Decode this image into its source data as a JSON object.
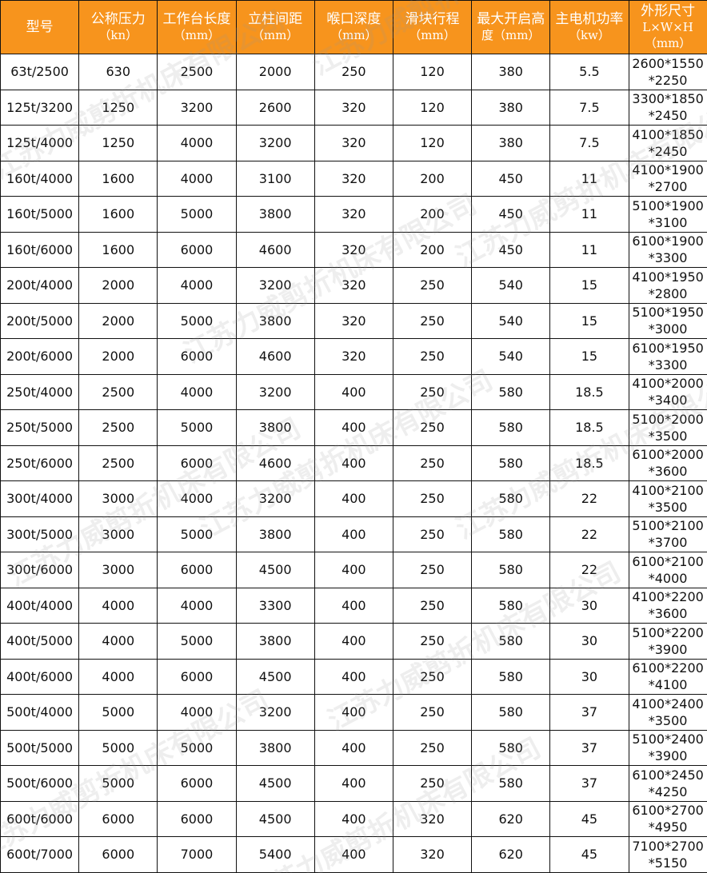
{
  "colors": {
    "header_bg": "#f7941d",
    "header_text": "#ffffff",
    "border": "#111111"
  },
  "watermark": "江苏力威剪折机床有限公司",
  "headers": [
    {
      "label": "型号",
      "unit": ""
    },
    {
      "label": "公称压力",
      "unit": "（kn）"
    },
    {
      "label": "工作台长度",
      "unit": "（mm）"
    },
    {
      "label": "立柱间距",
      "unit": "（mm）"
    },
    {
      "label": "喉口深度",
      "unit": "（mm）"
    },
    {
      "label": "滑块行程",
      "unit": "（mm）"
    },
    {
      "label": "最大开启高",
      "unit": "度（mm）"
    },
    {
      "label": "主电机功率",
      "unit": "（kw）"
    },
    {
      "label": "外形尺寸",
      "unit": "L×W×H（mm）"
    }
  ],
  "rows": [
    [
      "63t/2500",
      "630",
      "2500",
      "2000",
      "250",
      "120",
      "380",
      "5.5",
      "2600*1550",
      "*2250"
    ],
    [
      "125t/3200",
      "1250",
      "3200",
      "2600",
      "320",
      "120",
      "380",
      "7.5",
      "3300*1850",
      "*2450"
    ],
    [
      "125t/4000",
      "1250",
      "4000",
      "3200",
      "320",
      "120",
      "380",
      "7.5",
      "4100*1850",
      "*2450"
    ],
    [
      "160t/4000",
      "1600",
      "4000",
      "3100",
      "320",
      "200",
      "450",
      "11",
      "4100*1900",
      "*2700"
    ],
    [
      "160t/5000",
      "1600",
      "5000",
      "3800",
      "320",
      "200",
      "450",
      "11",
      "5100*1900",
      "*3100"
    ],
    [
      "160t/6000",
      "1600",
      "6000",
      "4600",
      "320",
      "200",
      "450",
      "11",
      "6100*1900",
      "*3300"
    ],
    [
      "200t/4000",
      "2000",
      "4000",
      "3200",
      "320",
      "250",
      "540",
      "15",
      "4100*1950",
      "*2800"
    ],
    [
      "200t/5000",
      "2000",
      "5000",
      "3800",
      "320",
      "250",
      "540",
      "15",
      "5100*1950",
      "*3000"
    ],
    [
      "200t/6000",
      "2000",
      "6000",
      "4600",
      "320",
      "250",
      "540",
      "15",
      "6100*1950",
      "*3300"
    ],
    [
      "250t/4000",
      "2500",
      "4000",
      "3200",
      "400",
      "250",
      "580",
      "18.5",
      "4100*2000",
      "*3400"
    ],
    [
      "250t/5000",
      "2500",
      "5000",
      "3800",
      "400",
      "250",
      "580",
      "18.5",
      "5100*2000",
      "*3500"
    ],
    [
      "250t/6000",
      "2500",
      "6000",
      "4600",
      "400",
      "250",
      "580",
      "18.5",
      "6100*2000",
      "*3600"
    ],
    [
      "300t/4000",
      "3000",
      "4000",
      "3200",
      "400",
      "250",
      "580",
      "22",
      "4100*2100",
      "*3500"
    ],
    [
      "300t/5000",
      "3000",
      "5000",
      "3800",
      "400",
      "250",
      "580",
      "22",
      "5100*2100",
      "*3700"
    ],
    [
      "300t/6000",
      "3000",
      "6000",
      "4500",
      "400",
      "250",
      "580",
      "22",
      "6100*2100",
      "*4000"
    ],
    [
      "400t/4000",
      "4000",
      "4000",
      "3300",
      "400",
      "250",
      "580",
      "30",
      "4100*2200",
      "*3600"
    ],
    [
      "400t/5000",
      "4000",
      "5000",
      "3800",
      "400",
      "250",
      "580",
      "30",
      "5100*2200",
      "*3900"
    ],
    [
      "400t/6000",
      "4000",
      "6000",
      "4500",
      "400",
      "250",
      "580",
      "30",
      "6100*2200",
      "*4100"
    ],
    [
      "500t/4000",
      "5000",
      "4000",
      "3200",
      "400",
      "250",
      "580",
      "37",
      "4100*2400",
      "*3500"
    ],
    [
      "500t/5000",
      "5000",
      "5000",
      "3800",
      "400",
      "250",
      "580",
      "37",
      "5100*2400",
      "*3900"
    ],
    [
      "500t/6000",
      "5000",
      "6000",
      "4500",
      "400",
      "250",
      "580",
      "37",
      "6100*2450",
      "*4250"
    ],
    [
      "600t/6000",
      "6000",
      "6000",
      "4500",
      "400",
      "320",
      "620",
      "45",
      "6100*2700",
      "*4950"
    ],
    [
      "600t/7000",
      "6000",
      "7000",
      "5400",
      "400",
      "320",
      "620",
      "45",
      "7100*2700",
      "*5150"
    ]
  ]
}
